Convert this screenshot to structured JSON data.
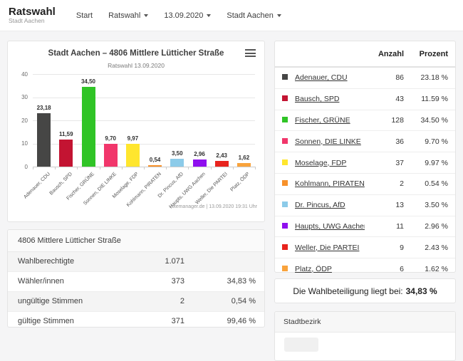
{
  "brand": {
    "title": "Ratswahl",
    "subtitle": "Stadt Aachen"
  },
  "nav": {
    "items": [
      {
        "label": "Start",
        "dropdown": false
      },
      {
        "label": "Ratswahl",
        "dropdown": true
      },
      {
        "label": "13.09.2020",
        "dropdown": true
      },
      {
        "label": "Stadt Aachen",
        "dropdown": true
      }
    ]
  },
  "chart_data": {
    "type": "bar",
    "title": "Stadt Aachen – 4806 Mittlere Lütticher Straße",
    "subtitle": "Ratswahl 13.09.2020",
    "categories": [
      "Adenauer, CDU",
      "Bausch, SPD",
      "Fischer, GRÜNE",
      "Sonnen, DIE LINKE",
      "Moselage, FDP",
      "Kohlmann, PIRATEN",
      "Dr. Pincus, AfD",
      "Haupts, UWG Aachen",
      "Weller, Die PARTEI",
      "Platz, ÖDP"
    ],
    "values": [
      23.18,
      11.59,
      34.5,
      9.7,
      9.97,
      0.54,
      3.5,
      2.96,
      2.43,
      1.62
    ],
    "value_labels": [
      "23,18",
      "11,59",
      "34,50",
      "9,70",
      "9,97",
      "0,54",
      "3,50",
      "2,96",
      "2,43",
      "1,62"
    ],
    "colors": [
      "#464645",
      "#c31432",
      "#30c426",
      "#f1366b",
      "#ffe62e",
      "#f7912a",
      "#8ccbe9",
      "#8f0fef",
      "#e8231d",
      "#f9a33c"
    ],
    "ylim": [
      0,
      40
    ],
    "yticks": [
      0,
      10,
      20,
      30,
      40
    ],
    "xlabel": "",
    "ylabel": "",
    "legend": "none",
    "grid": true,
    "credits": "votemanager.de | 13.09.2020 19:31 Uhr"
  },
  "results_table": {
    "count_header": "Anzahl",
    "percent_header": "Prozent",
    "rows": [
      {
        "name": "Adenauer, CDU",
        "color": "#464645",
        "count": "86",
        "percent": "23.18 %"
      },
      {
        "name": "Bausch, SPD",
        "color": "#c31432",
        "count": "43",
        "percent": "11.59 %"
      },
      {
        "name": "Fischer, GRÜNE",
        "color": "#30c426",
        "count": "128",
        "percent": "34.50 %"
      },
      {
        "name": "Sonnen, DIE LINKE",
        "color": "#f1366b",
        "count": "36",
        "percent": "9.70 %"
      },
      {
        "name": "Moselage, FDP",
        "color": "#ffe62e",
        "count": "37",
        "percent": "9.97 %"
      },
      {
        "name": "Kohlmann, PIRATEN",
        "color": "#f7912a",
        "count": "2",
        "percent": "0.54 %"
      },
      {
        "name": "Dr. Pincus, AfD",
        "color": "#8ccbe9",
        "count": "13",
        "percent": "3.50 %"
      },
      {
        "name": "Haupts, UWG Aachen",
        "color": "#8f0fef",
        "count": "11",
        "percent": "2.96 %"
      },
      {
        "name": "Weller, Die PARTEI",
        "color": "#e8231d",
        "count": "9",
        "percent": "2.43 %"
      },
      {
        "name": "Platz, ÖDP",
        "color": "#f9a33c",
        "count": "6",
        "percent": "1.62 %"
      }
    ]
  },
  "turnout": {
    "label": "Die Wahlbeteiligung liegt bei:",
    "value": "34,83 %"
  },
  "stats_table": {
    "title": "4806 Mittlere Lütticher Straße",
    "rows": [
      {
        "label": "Wahlberechtigte",
        "count": "1.071",
        "percent": ""
      },
      {
        "label": "Wähler/innen",
        "count": "373",
        "percent": "34,83 %"
      },
      {
        "label": "ungültige Stimmen",
        "count": "2",
        "percent": "0,54 %"
      },
      {
        "label": "gültige Stimmen",
        "count": "371",
        "percent": "99,46 %"
      }
    ]
  },
  "district_panel": {
    "title": "Stadtbezirk"
  }
}
